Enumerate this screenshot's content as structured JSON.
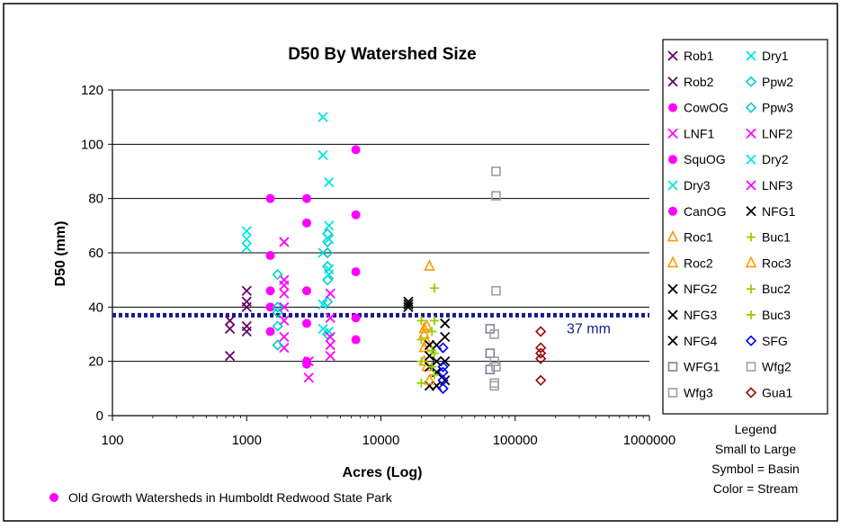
{
  "chart_data": {
    "type": "scatter",
    "title": "D50 By Watershed Size",
    "xlabel": "Acres (Log)",
    "ylabel": "D50 (mm)",
    "x_scale": "log",
    "xlim": [
      100,
      1000000
    ],
    "ylim": [
      0,
      120
    ],
    "x_ticks": [
      100,
      1000,
      10000,
      100000,
      1000000
    ],
    "x_tick_labels": [
      "100",
      "1000",
      "10000",
      "100000",
      "1000000"
    ],
    "y_ticks": [
      0,
      20,
      40,
      60,
      80,
      100,
      120
    ],
    "y_tick_labels": [
      "0",
      "20",
      "40",
      "60",
      "80",
      "100",
      "120"
    ],
    "grid": "horizontal",
    "reference_line": {
      "y": 37,
      "label": "37 mm",
      "color": "#1a1a8c"
    },
    "legend_position": "right",
    "legend_note": [
      "Legend",
      "Small to Large",
      "Symbol = Basin",
      "Color = Stream"
    ],
    "footnote": "Old Growth Watersheds in Humboldt Redwood State Park",
    "footnote_marker_color": "#ff00ff",
    "series": [
      {
        "name": "Rob1",
        "marker": "x",
        "color": "#660066",
        "x": 750,
        "values": [
          22,
          32,
          35
        ]
      },
      {
        "name": "Rob2",
        "marker": "x",
        "color": "#660066",
        "x": 1000,
        "values": [
          31,
          33,
          40,
          42,
          46
        ]
      },
      {
        "name": "CowOG",
        "marker": "circle",
        "color": "#ff00ff",
        "x": 1500,
        "values": [
          31,
          40,
          46,
          59,
          80
        ]
      },
      {
        "name": "LNF1",
        "marker": "x",
        "color": "#ff00ff",
        "x": 1900,
        "values": [
          25,
          29,
          35,
          40,
          45,
          48,
          50,
          64
        ]
      },
      {
        "name": "SquOG",
        "marker": "circle",
        "color": "#ff00ff",
        "x": 2800,
        "values": [
          19,
          20,
          34,
          46,
          71,
          80
        ]
      },
      {
        "name": "Dry3",
        "marker": "x",
        "color": "#00e6e6",
        "x": 1000,
        "values": [
          62,
          65,
          68
        ]
      },
      {
        "name": "CanOG",
        "marker": "circle",
        "color": "#ff00ff",
        "x": 6500,
        "values": [
          28,
          36,
          53,
          74,
          98
        ]
      },
      {
        "name": "Roc1",
        "marker": "triangle",
        "color": "#ff9900",
        "x": 21000,
        "values": [
          20,
          25,
          30,
          32
        ]
      },
      {
        "name": "Roc2",
        "marker": "triangle",
        "color": "#ff9900",
        "x": 22000,
        "values": [
          18,
          27,
          33
        ]
      },
      {
        "name": "NFG2",
        "marker": "x",
        "color": "#000000",
        "x": 16000,
        "values": [
          40,
          41,
          42
        ]
      },
      {
        "name": "NFG3",
        "marker": "x",
        "color": "#000000",
        "x": 23000,
        "values": [
          11,
          18,
          22,
          26
        ]
      },
      {
        "name": "NFG4",
        "marker": "x",
        "color": "#000000",
        "x": 26000,
        "values": [
          11,
          16,
          20,
          26
        ]
      },
      {
        "name": "WFG1",
        "marker": "square",
        "color": "#8080a0",
        "x": 65000,
        "values": [
          17,
          23,
          32
        ]
      },
      {
        "name": "Wfg3",
        "marker": "square",
        "color": "#a0a0a0",
        "x": 70000,
        "values": [
          11,
          12,
          20,
          30
        ]
      },
      {
        "name": "Dry1",
        "marker": "x",
        "color": "#00e6e6",
        "x": 3700,
        "values": [
          32,
          41,
          60,
          96,
          110
        ]
      },
      {
        "name": "Ppw2",
        "marker": "diamond",
        "color": "#00cccc",
        "x": 1700,
        "values": [
          26,
          33,
          38,
          40,
          52
        ]
      },
      {
        "name": "Ppw3",
        "marker": "diamond",
        "color": "#00cccc",
        "x": 4000,
        "values": [
          30,
          42,
          50,
          55,
          60,
          64,
          67
        ]
      },
      {
        "name": "LNF2",
        "marker": "x",
        "color": "#ff00ff",
        "x": 2900,
        "values": [
          14,
          20
        ]
      },
      {
        "name": "Dry2",
        "marker": "x",
        "color": "#00e6e6",
        "x": 4100,
        "values": [
          31,
          52,
          54,
          65,
          70,
          86
        ]
      },
      {
        "name": "LNF3",
        "marker": "x",
        "color": "#ff00ff",
        "x": 4200,
        "values": [
          22,
          26,
          29,
          36,
          45
        ]
      },
      {
        "name": "NFG1",
        "marker": "x",
        "color": "#000000",
        "x": 30000,
        "values": [
          13,
          20,
          29,
          34
        ]
      },
      {
        "name": "Buc1",
        "marker": "plus",
        "color": "#99cc00",
        "x": 25000,
        "values": [
          15,
          23,
          35,
          47
        ]
      },
      {
        "name": "Roc3",
        "marker": "triangle",
        "color": "#ff9900",
        "x": 23000,
        "values": [
          13,
          55
        ]
      },
      {
        "name": "Buc2",
        "marker": "plus",
        "color": "#99cc00",
        "x": 20000,
        "values": [
          12,
          20,
          28,
          35
        ]
      },
      {
        "name": "Buc3",
        "marker": "plus",
        "color": "#99cc00",
        "x": 24000,
        "values": [
          18,
          24,
          31
        ]
      },
      {
        "name": "SFG",
        "marker": "diamond",
        "color": "#0000ff",
        "x": 29000,
        "values": [
          10,
          13,
          16,
          18,
          25
        ]
      },
      {
        "name": "Wfg2",
        "marker": "square",
        "color": "#a0a0a0",
        "x": 72000,
        "values": [
          18,
          46,
          81,
          90
        ]
      },
      {
        "name": "Gua1",
        "marker": "diamond",
        "color": "#990000",
        "x": 155000,
        "values": [
          13,
          21,
          23,
          25,
          31
        ]
      }
    ]
  }
}
